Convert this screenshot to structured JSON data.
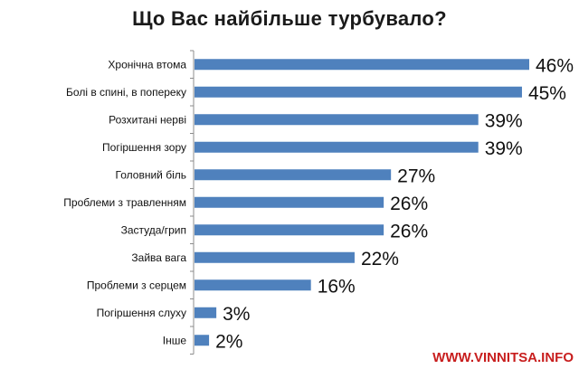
{
  "chart_data": {
    "type": "bar",
    "orientation": "horizontal",
    "title": "Що Вас найбільше турбувало?",
    "categories": [
      "Хронічна втома",
      "Болі в спині, в попереку",
      "Розхитані нерві",
      "Погіршення зору",
      "Головний біль",
      "Проблеми з травленням",
      "Застуда/грип",
      "Зайва вага",
      "Проблеми з серцем",
      "Погіршення слуху",
      "Інше"
    ],
    "values": [
      46,
      45,
      39,
      39,
      27,
      26,
      26,
      22,
      16,
      3,
      2
    ],
    "value_labels": [
      "46%",
      "45%",
      "39%",
      "39%",
      "27%",
      "26%",
      "26%",
      "22%",
      "16%",
      "3%",
      "2%"
    ],
    "xlim": [
      0,
      46
    ],
    "bar_color": "#4f81bd",
    "axis_color": "#8c8c8c",
    "grid": false,
    "legend": false
  },
  "watermark": "WWW.VINNITSA.INFO",
  "colors": {
    "watermark": "#c81e1e"
  }
}
